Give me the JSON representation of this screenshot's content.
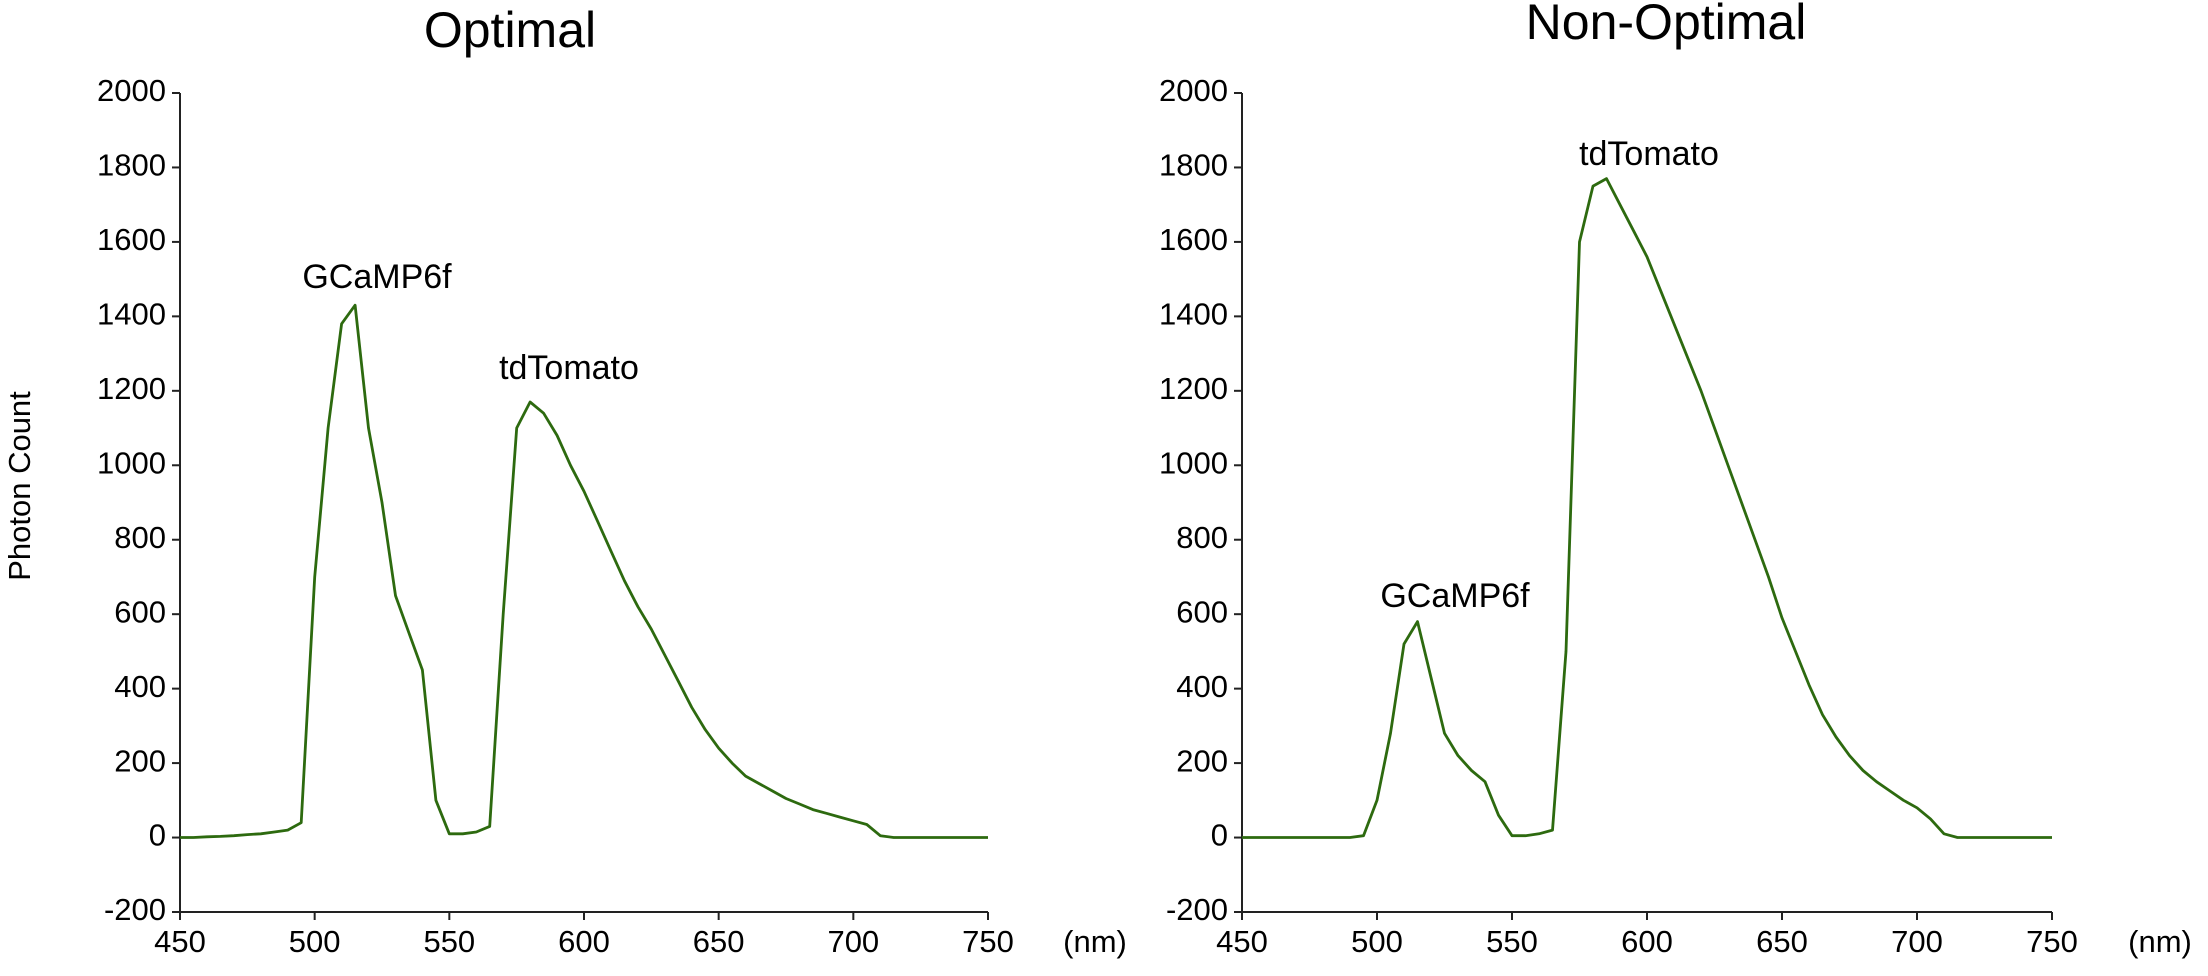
{
  "chart_data": [
    {
      "type": "line",
      "title": "Optimal",
      "ylabel": "Photon Count",
      "xlabel": "(nm)",
      "x": [
        450,
        455,
        460,
        465,
        470,
        475,
        480,
        485,
        490,
        495,
        500,
        505,
        510,
        515,
        520,
        525,
        530,
        535,
        540,
        545,
        550,
        555,
        560,
        565,
        570,
        575,
        580,
        585,
        590,
        595,
        600,
        605,
        610,
        615,
        620,
        625,
        630,
        635,
        640,
        645,
        650,
        655,
        660,
        665,
        670,
        675,
        680,
        685,
        690,
        695,
        700,
        705,
        710,
        715,
        720,
        725,
        730,
        735,
        740,
        745,
        750
      ],
      "series": [
        {
          "color": "#2d6a0f",
          "values": [
            0,
            0,
            2,
            3,
            5,
            8,
            10,
            15,
            20,
            40,
            700,
            1100,
            1380,
            1430,
            1100,
            900,
            650,
            550,
            450,
            100,
            10,
            10,
            15,
            30,
            600,
            1100,
            1170,
            1140,
            1080,
            1000,
            930,
            850,
            770,
            690,
            620,
            560,
            490,
            420,
            350,
            290,
            240,
            200,
            165,
            145,
            125,
            105,
            90,
            75,
            65,
            55,
            45,
            35,
            5,
            0,
            0,
            0,
            0,
            0,
            0,
            0,
            0
          ]
        }
      ],
      "annotations": [
        "GCaMP6f",
        "tdTomato"
      ],
      "xlim": [
        450,
        750
      ],
      "xticks": [
        450,
        500,
        550,
        600,
        650,
        700,
        750
      ],
      "ylim": [
        -200,
        2000
      ],
      "yticks": [
        -200,
        0,
        200,
        400,
        600,
        800,
        1000,
        1200,
        1400,
        1600,
        1800,
        2000
      ]
    },
    {
      "type": "line",
      "title": "Non-Optimal",
      "xlabel": "(nm)",
      "x": [
        450,
        455,
        460,
        465,
        470,
        475,
        480,
        485,
        490,
        495,
        500,
        505,
        510,
        515,
        520,
        525,
        530,
        535,
        540,
        545,
        550,
        555,
        560,
        565,
        570,
        575,
        580,
        585,
        590,
        595,
        600,
        605,
        610,
        615,
        620,
        625,
        630,
        635,
        640,
        645,
        650,
        655,
        660,
        665,
        670,
        675,
        680,
        685,
        690,
        695,
        700,
        705,
        710,
        715,
        720,
        725,
        730,
        735,
        740,
        745,
        750
      ],
      "series": [
        {
          "color": "#2d6a0f",
          "values": [
            0,
            0,
            0,
            0,
            0,
            0,
            0,
            0,
            0,
            5,
            100,
            280,
            520,
            580,
            430,
            280,
            220,
            180,
            150,
            60,
            5,
            5,
            10,
            20,
            500,
            1600,
            1750,
            1770,
            1700,
            1630,
            1560,
            1470,
            1380,
            1290,
            1200,
            1100,
            1000,
            900,
            800,
            700,
            590,
            500,
            410,
            330,
            270,
            220,
            180,
            150,
            125,
            100,
            80,
            50,
            10,
            0,
            0,
            0,
            0,
            0,
            0,
            0,
            0
          ]
        }
      ],
      "annotations": [
        "GCaMP6f",
        "tdTomato"
      ],
      "xlim": [
        450,
        750
      ],
      "xticks": [
        450,
        500,
        550,
        600,
        650,
        700,
        750
      ],
      "ylim": [
        -200,
        2000
      ],
      "yticks": [
        -200,
        0,
        200,
        400,
        600,
        800,
        1000,
        1200,
        1400,
        1600,
        1800,
        2000
      ]
    }
  ]
}
